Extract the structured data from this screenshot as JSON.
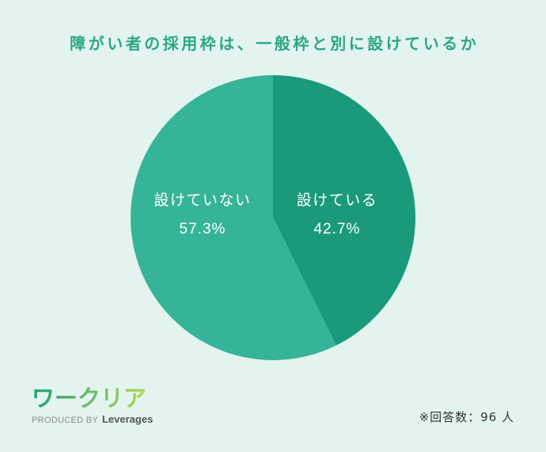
{
  "theme": {
    "background": "#e3f4f0",
    "title": "#2aa684",
    "label": "#ffffff",
    "footnote": "#333333",
    "logo_gradient": [
      "#22a079",
      "#b2d656"
    ],
    "logo_sub": "#8c8c8c",
    "logo_brand": "#555555"
  },
  "chart_data": {
    "type": "pie",
    "title": "障がい者の採用枠は、一般枠と別に設けているか",
    "categories": [
      "設けている",
      "設けていない"
    ],
    "values": [
      42.7,
      57.3
    ],
    "unit": "%",
    "colors": [
      "#1b9a7b",
      "#36b497"
    ]
  },
  "footnote": "※回答数：96 人",
  "logo": {
    "wordmark": "ワークリア",
    "produced_by": "PRODUCED BY",
    "brand": "Leverages"
  }
}
